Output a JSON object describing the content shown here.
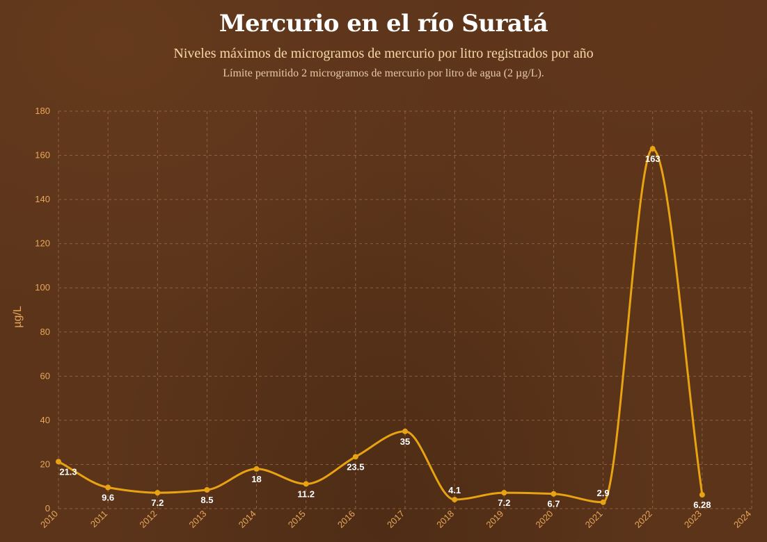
{
  "header": {
    "title": "Mercurio en el río Suratá",
    "subtitle": "Niveles máximos de microgramos de mercurio por litro registrados por año",
    "note": "Límite permitido 2 microgramos de mercurio por litro de agua (2 µg/L)."
  },
  "colors": {
    "background": "#5b341a",
    "line": "#e8a313",
    "tick_text": "#e9a85a",
    "grid": "#9b6a45",
    "data_label": "#ffffff"
  },
  "chart_data": {
    "type": "line",
    "title": "Mercurio en el río Suratá",
    "subtitle": "Niveles máximos de microgramos de mercurio por litro registrados por año",
    "xlabel": "",
    "ylabel": "µg/L",
    "x_ticks": [
      "2010",
      "2011",
      "2012",
      "2013",
      "2014",
      "2015",
      "2016",
      "2017",
      "2018",
      "2019",
      "2020",
      "2021",
      "2022",
      "2023",
      "2024"
    ],
    "y_ticks": [
      "0",
      "20",
      "40",
      "60",
      "80",
      "100",
      "120",
      "140",
      "160",
      "180"
    ],
    "xlim": [
      2010,
      2024
    ],
    "ylim": [
      0,
      180
    ],
    "grid": true,
    "smooth": true,
    "series": [
      {
        "x": [
          2010,
          2011,
          2012,
          2013,
          2014,
          2015,
          2016,
          2017,
          2018,
          2019,
          2020,
          2021,
          2022,
          2023
        ],
        "values": [
          21.3,
          9.6,
          7.2,
          8.5,
          18,
          11.2,
          23.5,
          35,
          4.1,
          7.2,
          6.7,
          2.9,
          163,
          6.28
        ],
        "labels": [
          "21.3",
          "9.6",
          "7.2",
          "8.5",
          "18",
          "11.2",
          "23.5",
          "35",
          "4.1",
          "7.2",
          "6.7",
          "2.9",
          "163",
          "6.28"
        ]
      }
    ]
  }
}
